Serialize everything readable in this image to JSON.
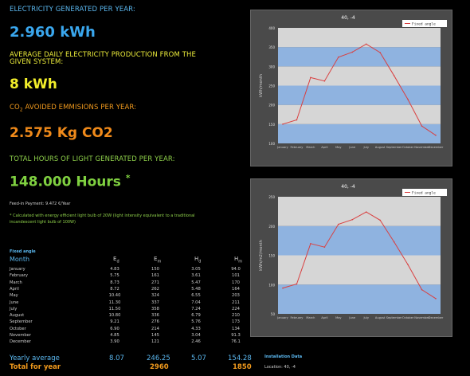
{
  "stats": {
    "elec_label": "ELECTRICITY GENERATED PER YEAR:",
    "elec_value": "2.960 kWh",
    "daily_label_1": "AVERAGE DAILY ELECTRICITY PRODUCTION FROM THE",
    "daily_label_2": "GIVEN SYSTEM:",
    "daily_value": "8 kWh",
    "co2_label_prefix": "CO",
    "co2_label_sub": "2",
    "co2_label_suffix": " AVOIDED EMMISIONS PER YEAR:",
    "co2_value": "2.575 Kg CO2",
    "hours_label": "TOTAL HOURS OF LIGHT GENERATED PER YEAR:",
    "hours_value": "148.000 Hours",
    "hours_asterisk": "*",
    "feed_in": "Feed-in Payment: 9.472 €/Year",
    "note_line1": "* Calculated with energy efficient light bulb of 20W (light intensity equivalent to a traditional",
    "note_line2": "incandescent light bulb of 100W)"
  },
  "table": {
    "section": "Fixed angle",
    "headers": {
      "month": "Month",
      "ed": "E",
      "ed_sub": "d",
      "em": "E",
      "em_sub": "m",
      "hd": "H",
      "hd_sub": "d",
      "hm": "H",
      "hm_sub": "m"
    },
    "rows": [
      {
        "month": "January",
        "ed": "4.83",
        "em": "150",
        "hd": "3.05",
        "hm": "94.0"
      },
      {
        "month": "February",
        "ed": "5.75",
        "em": "161",
        "hd": "3.61",
        "hm": "101"
      },
      {
        "month": "March",
        "ed": "8.73",
        "em": "271",
        "hd": "5.47",
        "hm": "170"
      },
      {
        "month": "April",
        "ed": "8.72",
        "em": "262",
        "hd": "5.48",
        "hm": "164"
      },
      {
        "month": "May",
        "ed": "10.40",
        "em": "324",
        "hd": "6.55",
        "hm": "203"
      },
      {
        "month": "June",
        "ed": "11.30",
        "em": "337",
        "hd": "7.04",
        "hm": "211"
      },
      {
        "month": "July",
        "ed": "11.50",
        "em": "358",
        "hd": "7.24",
        "hm": "224"
      },
      {
        "month": "August",
        "ed": "10.80",
        "em": "336",
        "hd": "6.79",
        "hm": "210"
      },
      {
        "month": "September",
        "ed": "9.21",
        "em": "276",
        "hd": "5.76",
        "hm": "173"
      },
      {
        "month": "October",
        "ed": "6.90",
        "em": "214",
        "hd": "4.33",
        "hm": "134"
      },
      {
        "month": "November",
        "ed": "4.85",
        "em": "145",
        "hd": "3.04",
        "hm": "91.3"
      },
      {
        "month": "December",
        "ed": "3.90",
        "em": "121",
        "hd": "2.46",
        "hm": "76.1"
      }
    ],
    "avg": {
      "label": "Yearly average",
      "ed": "8.07",
      "em": "246.25",
      "hd": "5.07",
      "hm": "154.28"
    },
    "total": {
      "label": "Total for year",
      "em": "2960",
      "hm": "1850"
    }
  },
  "install": {
    "title": "Installation Data",
    "location": "Location: 40, -4"
  },
  "chart_data": [
    {
      "type": "line",
      "title": "40, -4",
      "ylabel": "kWh/month",
      "series": [
        {
          "name": "Fixed angle",
          "values": [
            150,
            161,
            271,
            262,
            324,
            337,
            358,
            336,
            276,
            214,
            145,
            121
          ]
        }
      ],
      "categories": [
        "January",
        "February",
        "March",
        "April",
        "May",
        "June",
        "July",
        "August",
        "September",
        "October",
        "November",
        "December"
      ],
      "ylim": [
        100,
        400
      ],
      "yticks": [
        "100",
        "150",
        "200",
        "250",
        "300",
        "350",
        "400"
      ],
      "line_color": "#d94040",
      "band_colors": [
        "#8fb3e0",
        "#d6d6d6"
      ],
      "grid": false,
      "legend": "top-right"
    },
    {
      "type": "line",
      "title": "40, -4",
      "ylabel": "kWh/m2/month",
      "series": [
        {
          "name": "Fixed angle",
          "values": [
            94,
            101,
            170,
            164,
            203,
            211,
            224,
            210,
            173,
            134,
            91.3,
            76.1
          ]
        }
      ],
      "categories": [
        "January",
        "February",
        "March",
        "April",
        "May",
        "June",
        "July",
        "August",
        "September",
        "October",
        "November",
        "December"
      ],
      "ylim": [
        50,
        250
      ],
      "yticks": [
        "50",
        "100",
        "150",
        "200",
        "250"
      ],
      "line_color": "#d94040",
      "band_colors": [
        "#8fb3e0",
        "#d6d6d6"
      ],
      "grid": false,
      "legend": "top-right"
    }
  ]
}
